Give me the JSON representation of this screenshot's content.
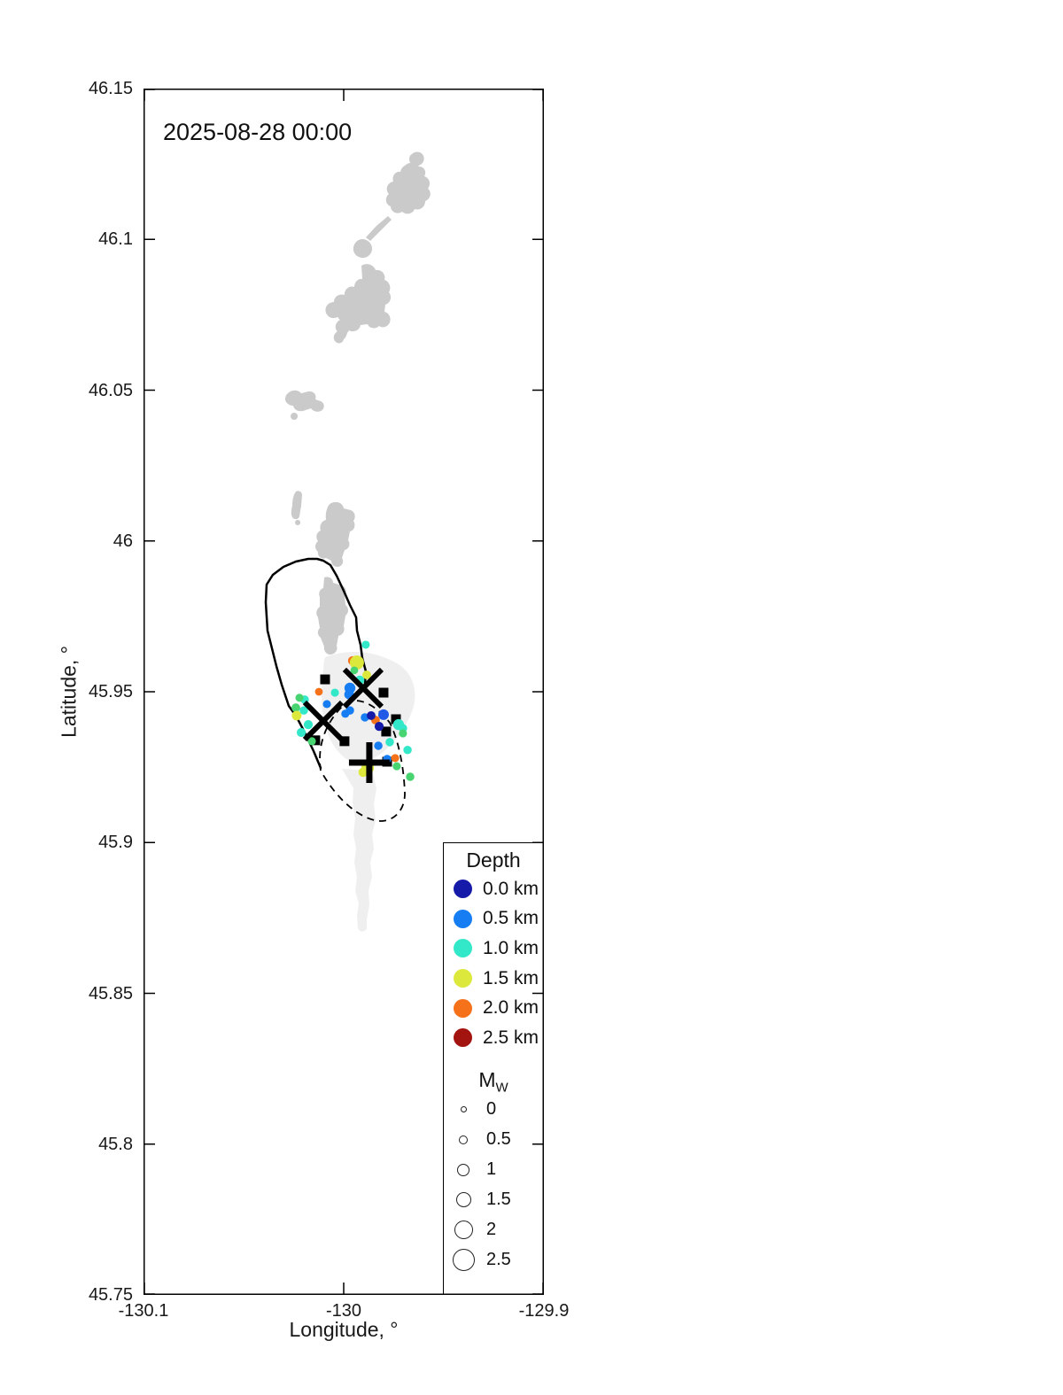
{
  "title": "2025-08-28 00:00",
  "axes": {
    "xlabel": "Longitude, °",
    "ylabel": "Latitude, °",
    "xlim": [
      -130.1,
      -129.9
    ],
    "ylim": [
      45.75,
      46.15
    ],
    "xticks": [
      {
        "v": -130.1,
        "label": "-130.1"
      },
      {
        "v": -130.0,
        "label": "-130"
      },
      {
        "v": -129.9,
        "label": "-129.9"
      }
    ],
    "yticks": [
      {
        "v": 46.15,
        "label": "46.15"
      },
      {
        "v": 46.1,
        "label": "46.1"
      },
      {
        "v": 46.05,
        "label": "46.05"
      },
      {
        "v": 46.0,
        "label": "46"
      },
      {
        "v": 45.95,
        "label": "45.95"
      },
      {
        "v": 45.9,
        "label": "45.9"
      },
      {
        "v": 45.85,
        "label": "45.85"
      },
      {
        "v": 45.8,
        "label": "45.8"
      },
      {
        "v": 45.75,
        "label": "45.75"
      }
    ]
  },
  "legend": {
    "depth": {
      "title": "Depth",
      "items": [
        {
          "label": "0.0 km",
          "depth": 0.0
        },
        {
          "label": "0.5 km",
          "depth": 0.5
        },
        {
          "label": "1.0 km",
          "depth": 1.0
        },
        {
          "label": "1.5 km",
          "depth": 1.5
        },
        {
          "label": "2.0 km",
          "depth": 2.0
        },
        {
          "label": "2.5 km",
          "depth": 2.5
        }
      ]
    },
    "magnitude": {
      "title": "M",
      "subscript": "W",
      "items": [
        {
          "label": "0",
          "mw": 0.0
        },
        {
          "label": "0.5",
          "mw": 0.5
        },
        {
          "label": "1",
          "mw": 1.0
        },
        {
          "label": "1.5",
          "mw": 1.5
        },
        {
          "label": "2",
          "mw": 2.0
        },
        {
          "label": "2.5",
          "mw": 2.5
        }
      ]
    }
  },
  "colors": {
    "land": "#cacaca",
    "lava_flow": "#efefef",
    "depth_scale": {
      "0": "#151aa8",
      "0.3": "#2059e8",
      "0.5": "#177df2",
      "1": "#33e8c8",
      "1.2": "#49d472",
      "1.5": "#dce93c",
      "2": "#f5711a",
      "2.5": "#a31410"
    }
  },
  "chart_data": {
    "type": "scatter",
    "timestamp_label": "2025-08-28 00:00",
    "events": [
      {
        "lon": -129.989,
        "lat": 45.9656,
        "depth_km": 1.0,
        "mw": 0.35
      },
      {
        "lon": -129.9956,
        "lat": 45.9603,
        "depth_km": 2.0,
        "mw": 0.5
      },
      {
        "lon": -129.9934,
        "lat": 45.9597,
        "depth_km": 1.5,
        "mw": 1.3
      },
      {
        "lon": -129.9947,
        "lat": 45.9571,
        "depth_km": 1.2,
        "mw": 0.3
      },
      {
        "lon": -129.9885,
        "lat": 45.9556,
        "depth_km": 1.5,
        "mw": 0.45
      },
      {
        "lon": -129.992,
        "lat": 45.9538,
        "depth_km": 1.0,
        "mw": 0.55
      },
      {
        "lon": -129.9969,
        "lat": 45.9512,
        "depth_km": 0.5,
        "mw": 0.8
      },
      {
        "lon": -129.9973,
        "lat": 45.9491,
        "depth_km": 0.5,
        "mw": 0.6
      },
      {
        "lon": -130.0124,
        "lat": 45.95,
        "depth_km": 2.0,
        "mw": 0.3
      },
      {
        "lon": -130.0044,
        "lat": 45.9497,
        "depth_km": 1.0,
        "mw": 0.35
      },
      {
        "lon": -130.0084,
        "lat": 45.9459,
        "depth_km": 0.5,
        "mw": 0.35
      },
      {
        "lon": -130.0195,
        "lat": 45.9474,
        "depth_km": 1.0,
        "mw": 0.4
      },
      {
        "lon": -130.0221,
        "lat": 45.948,
        "depth_km": 1.2,
        "mw": 0.35
      },
      {
        "lon": -130.0239,
        "lat": 45.9447,
        "depth_km": 1.2,
        "mw": 0.45
      },
      {
        "lon": -130.0235,
        "lat": 45.9421,
        "depth_km": 1.5,
        "mw": 0.6
      },
      {
        "lon": -130.0199,
        "lat": 45.9438,
        "depth_km": 1.0,
        "mw": 0.4
      },
      {
        "lon": -130.0177,
        "lat": 45.9391,
        "depth_km": 1.0,
        "mw": 0.5
      },
      {
        "lon": -130.0212,
        "lat": 45.9365,
        "depth_km": 1.0,
        "mw": 0.5
      },
      {
        "lon": -130.0159,
        "lat": 45.9336,
        "depth_km": 1.2,
        "mw": 0.35
      },
      {
        "lon": -129.9992,
        "lat": 45.9427,
        "depth_km": 0.5,
        "mw": 0.35
      },
      {
        "lon": -129.9969,
        "lat": 45.9438,
        "depth_km": 0.5,
        "mw": 0.4
      },
      {
        "lon": -129.9894,
        "lat": 45.9415,
        "depth_km": 0.5,
        "mw": 0.4
      },
      {
        "lon": -129.9801,
        "lat": 45.9424,
        "depth_km": 0.3,
        "mw": 0.75
      },
      {
        "lon": -129.9841,
        "lat": 45.9406,
        "depth_km": 2.0,
        "mw": 0.45
      },
      {
        "lon": -129.9863,
        "lat": 45.9421,
        "depth_km": 0.0,
        "mw": 0.45
      },
      {
        "lon": -129.9823,
        "lat": 45.9385,
        "depth_km": 0.0,
        "mw": 0.5
      },
      {
        "lon": -129.9726,
        "lat": 45.9391,
        "depth_km": 1.0,
        "mw": 0.8
      },
      {
        "lon": -129.9704,
        "lat": 45.9379,
        "depth_km": 1.0,
        "mw": 0.4
      },
      {
        "lon": -129.9704,
        "lat": 45.9362,
        "depth_km": 1.2,
        "mw": 0.35
      },
      {
        "lon": -129.977,
        "lat": 45.9333,
        "depth_km": 1.0,
        "mw": 0.4
      },
      {
        "lon": -129.9827,
        "lat": 45.9321,
        "depth_km": 0.5,
        "mw": 0.4
      },
      {
        "lon": -129.9783,
        "lat": 45.9277,
        "depth_km": 0.5,
        "mw": 0.4
      },
      {
        "lon": -129.9743,
        "lat": 45.928,
        "depth_km": 2.0,
        "mw": 0.35
      },
      {
        "lon": -129.9735,
        "lat": 45.9253,
        "depth_km": 1.2,
        "mw": 0.35
      },
      {
        "lon": -129.9681,
        "lat": 45.9307,
        "depth_km": 1.0,
        "mw": 0.4
      },
      {
        "lon": -129.988,
        "lat": 45.9248,
        "depth_km": 1.5,
        "mw": 1.05
      },
      {
        "lon": -129.9903,
        "lat": 45.9233,
        "depth_km": 1.5,
        "mw": 0.55
      },
      {
        "lon": -129.9668,
        "lat": 45.9218,
        "depth_km": 1.2,
        "mw": 0.4
      }
    ],
    "stations": [
      {
        "lon": -130.0093,
        "lat": 45.9541
      },
      {
        "lon": -129.9801,
        "lat": 45.9497
      },
      {
        "lon": -129.9739,
        "lat": 45.9409
      },
      {
        "lon": -129.9788,
        "lat": 45.9368
      },
      {
        "lon": -130.0142,
        "lat": 45.9339
      },
      {
        "lon": -129.9996,
        "lat": 45.9336
      },
      {
        "lon": -129.9783,
        "lat": 45.9268
      }
    ],
    "survey_markers": [
      {
        "type": "x",
        "lon": -129.9903,
        "lat": 45.9512
      },
      {
        "type": "x",
        "lon": -130.0102,
        "lat": 45.9403
      },
      {
        "type": "plus",
        "lon": -129.9872,
        "lat": 45.9265
      }
    ]
  }
}
